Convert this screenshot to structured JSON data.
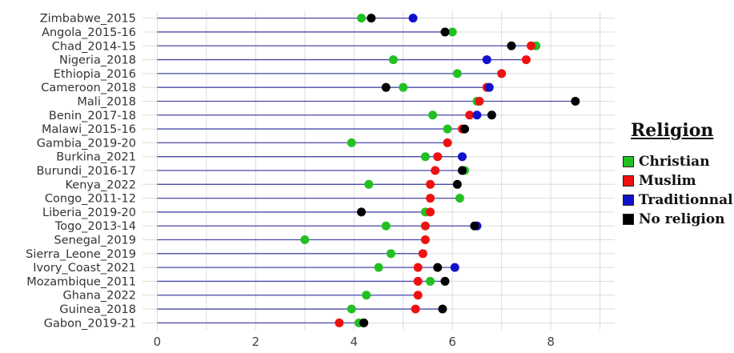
{
  "chart_data": {
    "type": "dot",
    "categories": [
      "Zimbabwe_2015",
      "Angola_2015-16",
      "Chad_2014-15",
      "Nigeria_2018",
      "Ethiopia_2016",
      "Cameroon_2018",
      "Mali_2018",
      "Benin_2017-18",
      "Malawi_2015-16",
      "Gambia_2019-20",
      "Burkina_2021",
      "Burundi_2016-17",
      "Kenya_2022",
      "Congo_2011-12",
      "Liberia_2019-20",
      "Togo_2013-14",
      "Senegal_2019",
      "Sierra_Leone_2019",
      "Ivory_Coast_2021",
      "Mozambique_2011",
      "Ghana_2022",
      "Guinea_2018",
      "Gabon_2019-21"
    ],
    "line_end": [
      5.2,
      6.0,
      7.7,
      7.5,
      7.0,
      6.75,
      8.5,
      6.8,
      6.3,
      5.9,
      6.2,
      6.25,
      6.1,
      6.15,
      5.55,
      6.5,
      5.45,
      5.4,
      6.05,
      5.85,
      5.3,
      5.8,
      4.2
    ],
    "series": [
      {
        "name": "Christian",
        "color": "#22c022",
        "values": [
          4.15,
          6.0,
          7.7,
          4.8,
          6.1,
          5.0,
          6.5,
          5.6,
          5.9,
          3.95,
          5.45,
          6.25,
          4.3,
          6.15,
          5.45,
          4.65,
          3.0,
          4.75,
          4.5,
          5.55,
          4.25,
          3.95,
          4.1
        ]
      },
      {
        "name": "Muslim",
        "color": "#ee1111",
        "values": [
          null,
          null,
          7.6,
          7.5,
          7.0,
          6.7,
          6.55,
          6.35,
          6.2,
          5.9,
          5.7,
          5.65,
          5.55,
          5.55,
          5.55,
          5.45,
          5.45,
          5.4,
          5.3,
          5.3,
          5.3,
          5.25,
          3.7
        ]
      },
      {
        "name": "Traditionnal",
        "color": "#1111cc",
        "values": [
          5.2,
          null,
          null,
          6.7,
          null,
          6.75,
          null,
          6.5,
          null,
          null,
          6.2,
          null,
          null,
          null,
          null,
          6.5,
          null,
          null,
          6.05,
          null,
          null,
          null,
          null
        ]
      },
      {
        "name": "No religion",
        "color": "#000000",
        "values": [
          4.35,
          5.85,
          7.2,
          null,
          null,
          4.65,
          8.5,
          6.8,
          6.25,
          null,
          null,
          6.2,
          6.1,
          null,
          4.15,
          6.45,
          null,
          null,
          5.7,
          5.85,
          null,
          5.8,
          4.2
        ]
      }
    ],
    "xlim": [
      -0.3,
      9.3
    ],
    "xticks": [
      "0",
      "2",
      "4",
      "6",
      "8"
    ],
    "xtick_values": [
      0,
      2,
      4,
      6,
      8
    ],
    "legend_title": "Religion",
    "legend_position": "right",
    "grid": true,
    "line_color": "#4a4aa8",
    "grid_color": "#dcdcdc"
  }
}
